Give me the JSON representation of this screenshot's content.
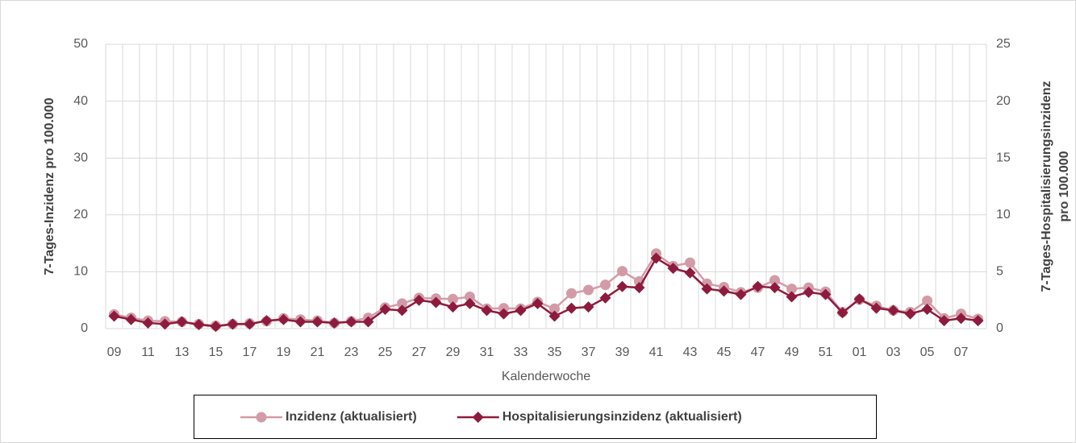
{
  "chart_data": {
    "type": "line",
    "x_label": "Kalenderwoche",
    "y_label": "7-Tages-Inzidenz pro 100.000",
    "y2_label": [
      "7-Tages-Hospitalisierungsinzidenz",
      "pro 100.000"
    ],
    "categories": [
      "09",
      null,
      "11",
      null,
      "13",
      null,
      "15",
      null,
      "17",
      null,
      "19",
      null,
      "21",
      null,
      "23",
      null,
      "25",
      null,
      "27",
      null,
      "29",
      null,
      "31",
      null,
      "33",
      null,
      "35",
      null,
      "37",
      null,
      "39",
      null,
      "41",
      null,
      "43",
      null,
      "45",
      null,
      "47",
      null,
      "49",
      null,
      "51",
      null,
      "01",
      null,
      "03",
      null,
      "05",
      null,
      "07",
      null
    ],
    "ylim": [
      0,
      50
    ],
    "yticks": [
      0,
      10,
      20,
      30,
      40,
      50
    ],
    "y2lim": [
      0,
      25
    ],
    "y2ticks": [
      0,
      5,
      10,
      15,
      20,
      25
    ],
    "grid": true,
    "legend": "bottom",
    "series": [
      {
        "name": "Inzidenz (aktualisiert)",
        "color": "#d39ba7",
        "marker": "circle",
        "values": [
          2.5,
          1.9,
          1.4,
          1.3,
          1.2,
          0.8,
          0.5,
          0.8,
          0.9,
          1.3,
          1.8,
          1.6,
          1.4,
          1.0,
          1.3,
          1.9,
          3.7,
          4.4,
          5.4,
          5.3,
          5.2,
          5.6,
          3.5,
          3.6,
          3.5,
          4.7,
          3.5,
          6.2,
          6.8,
          7.7,
          10.1,
          8.3,
          13.2,
          11.0,
          11.6,
          7.9,
          7.3,
          6.4,
          7.2,
          8.5,
          7.0,
          7.2,
          6.5,
          2.9,
          5.1,
          4.0,
          3.2,
          2.9,
          4.9,
          1.8,
          2.6,
          1.7
        ]
      },
      {
        "name": "Hospitalisierungsinzidenz (aktualisiert)",
        "color": "#8e1b3d",
        "marker": "diamond",
        "axis": "y2",
        "values": [
          1.1,
          0.8,
          0.5,
          0.4,
          0.6,
          0.35,
          0.2,
          0.4,
          0.4,
          0.7,
          0.8,
          0.6,
          0.6,
          0.5,
          0.6,
          0.6,
          1.7,
          1.6,
          2.5,
          2.3,
          1.9,
          2.2,
          1.6,
          1.3,
          1.6,
          2.2,
          1.1,
          1.8,
          1.9,
          2.7,
          3.7,
          3.6,
          6.2,
          5.3,
          4.9,
          3.5,
          3.3,
          3.0,
          3.7,
          3.6,
          2.8,
          3.2,
          3.0,
          1.4,
          2.6,
          1.8,
          1.6,
          1.3,
          1.7,
          0.7,
          0.9,
          0.7
        ]
      }
    ]
  }
}
